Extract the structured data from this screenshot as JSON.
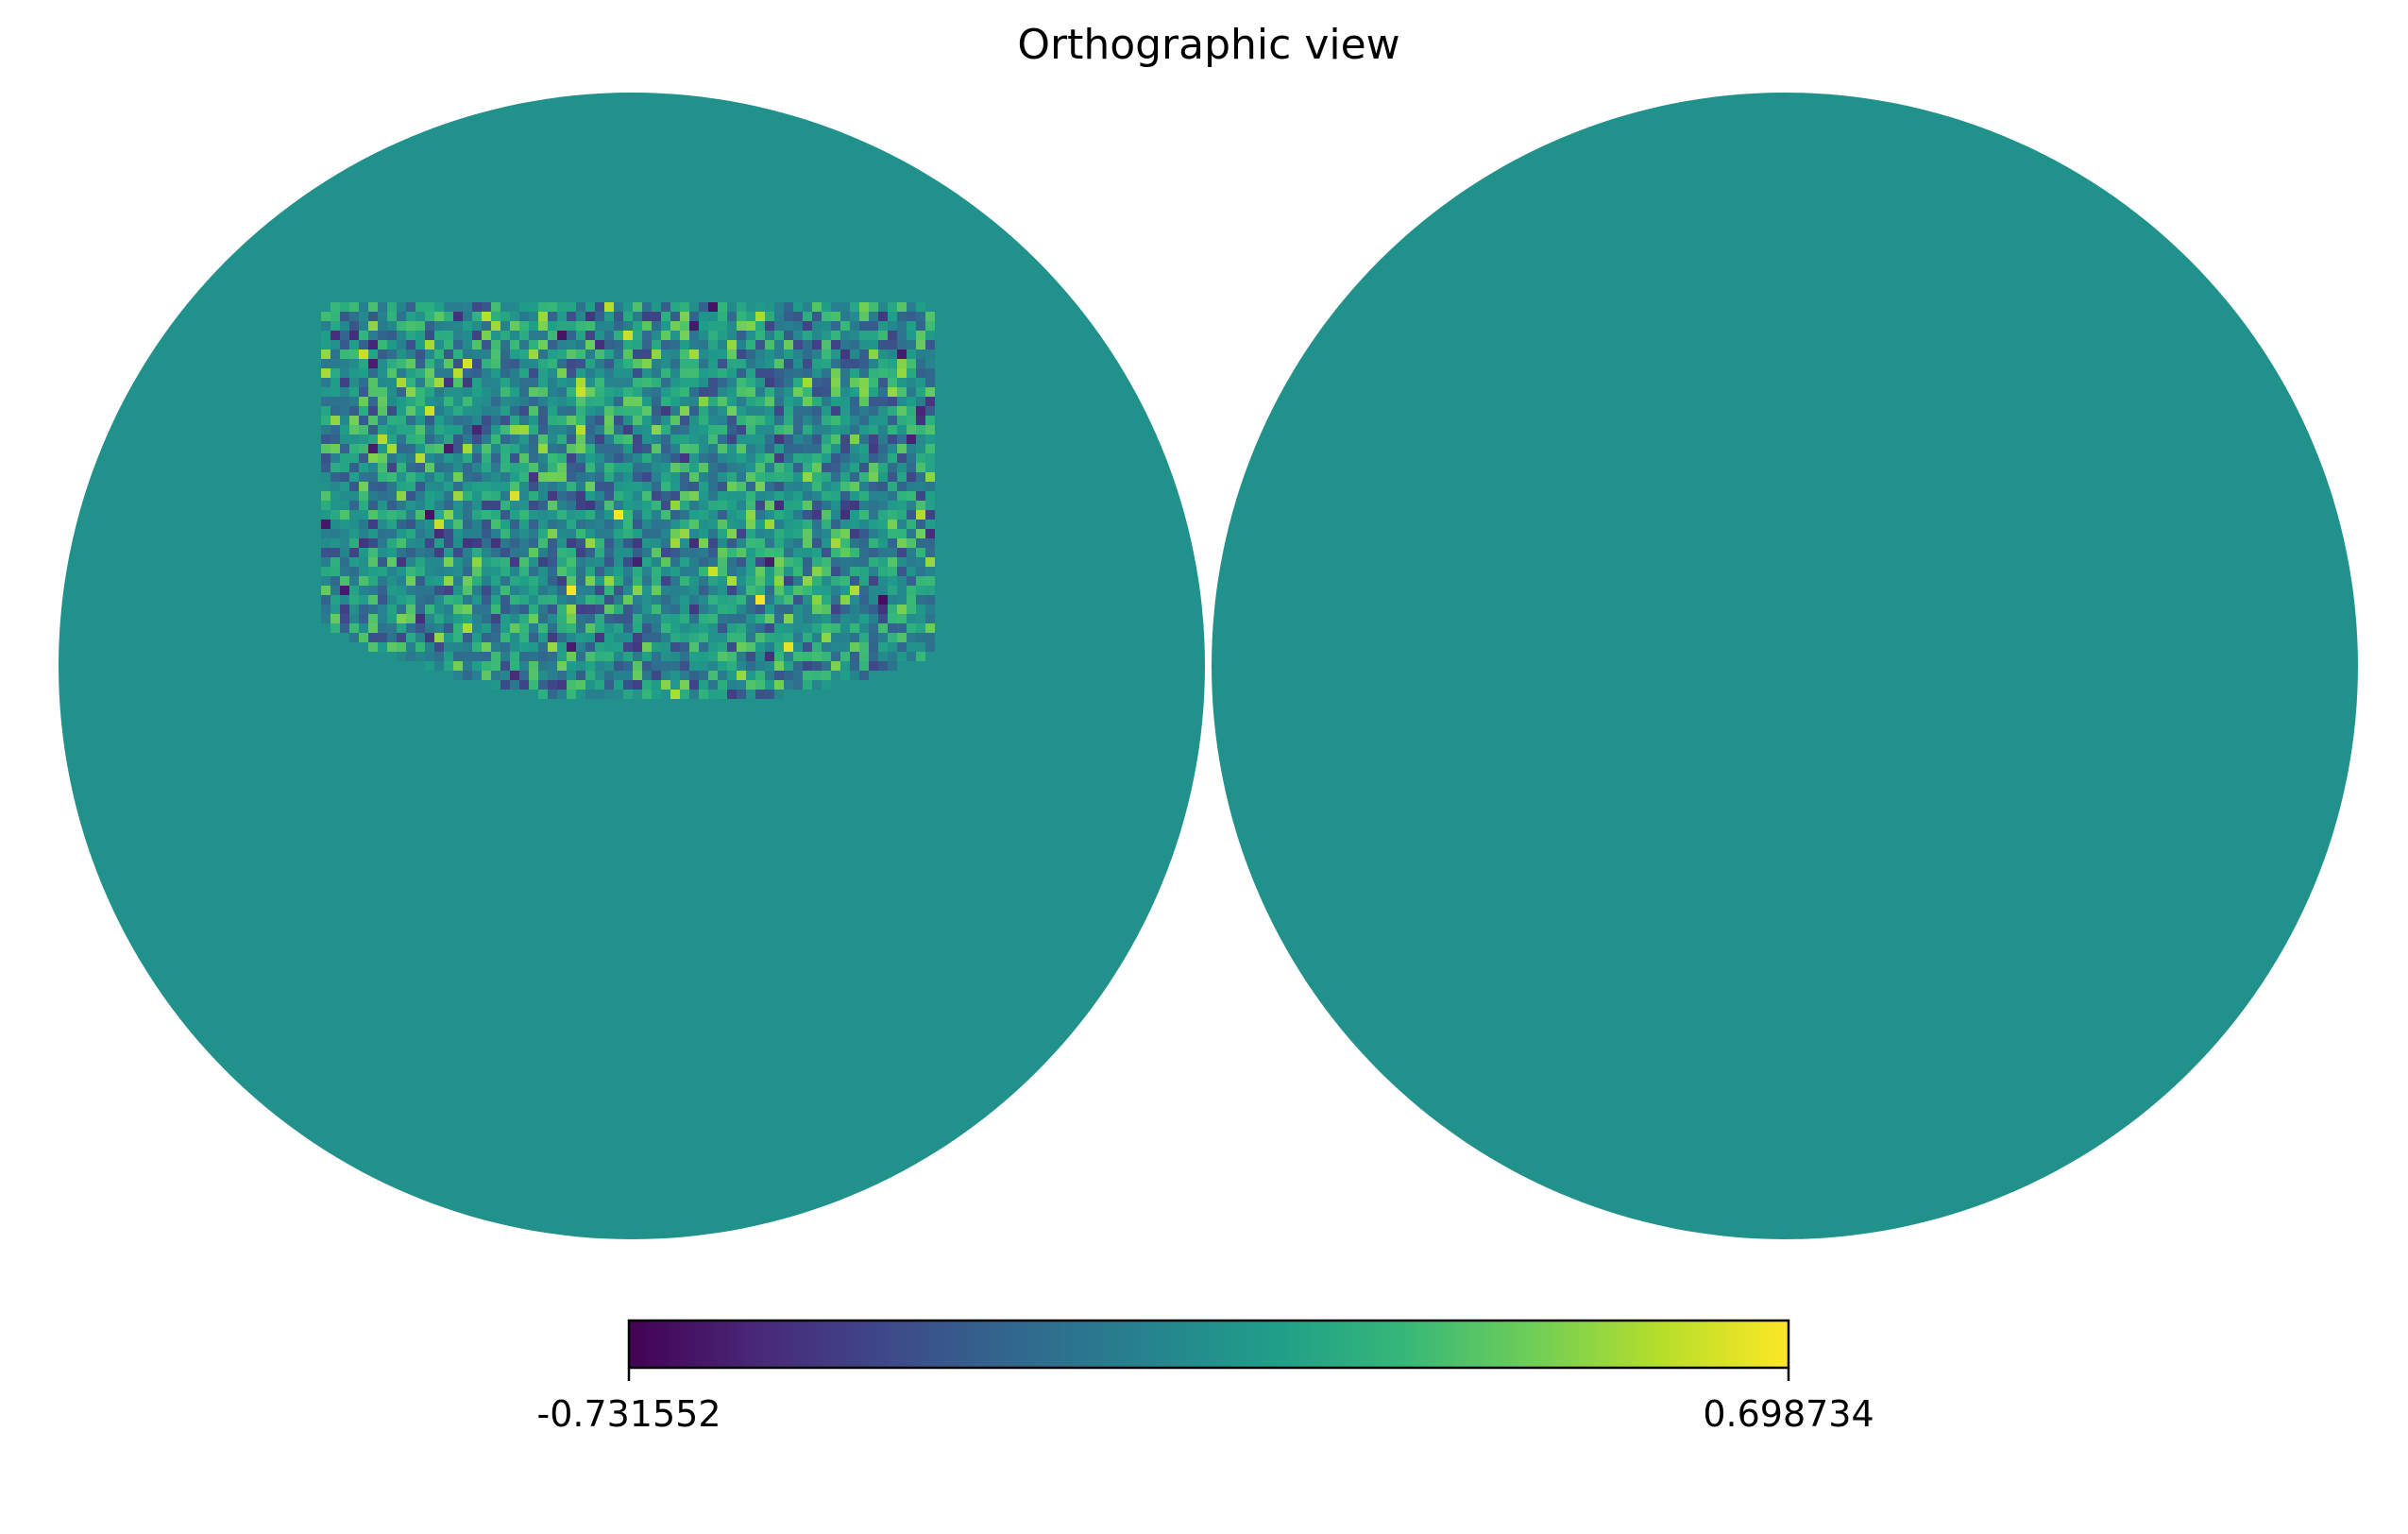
{
  "figure": {
    "title": "Orthographic view"
  },
  "map": {
    "projection": "orthographic",
    "hemispheres": [
      "left",
      "right"
    ],
    "background_value_color": "#21918c",
    "outside_color": "#ffffff"
  },
  "colorbar": {
    "min_label": "-0.731552",
    "max_label": "0.698734",
    "min": -0.731552,
    "max": 0.698734,
    "colormap": "viridis",
    "colormap_stops": [
      "#440154",
      "#482878",
      "#3e4989",
      "#31688e",
      "#26828e",
      "#1f9e89",
      "#35b779",
      "#6ece58",
      "#b5de2b",
      "#fde725"
    ]
  }
}
